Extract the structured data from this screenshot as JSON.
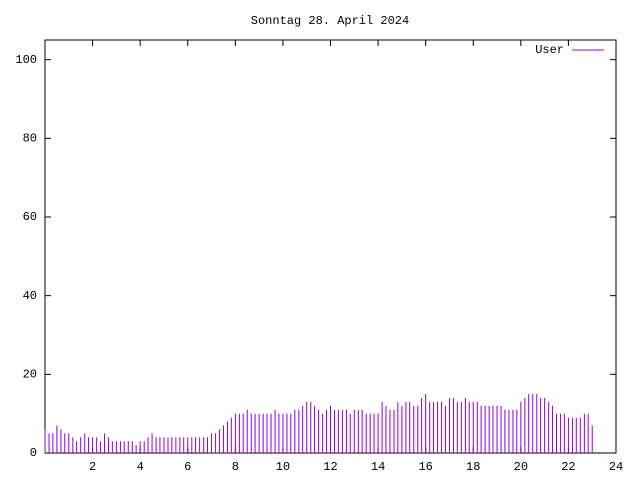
{
  "chart_data": {
    "type": "impulses",
    "title": "Sonntag 28. April 2024",
    "x": [
      0,
      0.17,
      0.33,
      0.5,
      0.67,
      0.83,
      1,
      1.17,
      1.33,
      1.5,
      1.67,
      1.83,
      2,
      2.17,
      2.33,
      2.5,
      2.67,
      2.83,
      3,
      3.17,
      3.33,
      3.5,
      3.67,
      3.83,
      4,
      4.17,
      4.33,
      4.5,
      4.67,
      4.83,
      5,
      5.17,
      5.33,
      5.5,
      5.67,
      5.83,
      6,
      6.17,
      6.33,
      6.5,
      6.67,
      6.83,
      7,
      7.17,
      7.33,
      7.5,
      7.67,
      7.83,
      8,
      8.17,
      8.33,
      8.5,
      8.67,
      8.83,
      9,
      9.17,
      9.33,
      9.5,
      9.67,
      9.83,
      10,
      10.17,
      10.33,
      10.5,
      10.67,
      10.83,
      11,
      11.17,
      11.33,
      11.5,
      11.67,
      11.83,
      12,
      12.17,
      12.33,
      12.5,
      12.67,
      12.83,
      13,
      13.17,
      13.33,
      13.5,
      13.67,
      13.83,
      14,
      14.17,
      14.33,
      14.5,
      14.67,
      14.83,
      15,
      15.17,
      15.33,
      15.5,
      15.67,
      15.83,
      16,
      16.17,
      16.33,
      16.5,
      16.67,
      16.83,
      17,
      17.17,
      17.33,
      17.5,
      17.67,
      17.83,
      18,
      18.17,
      18.33,
      18.5,
      18.67,
      18.83,
      19,
      19.17,
      19.33,
      19.5,
      19.67,
      19.83,
      20,
      20.17,
      20.33,
      20.5,
      20.67,
      20.83,
      21,
      21.17,
      21.33,
      21.5,
      21.67,
      21.83,
      22,
      22.17,
      22.33,
      22.5,
      22.67,
      22.83,
      23
    ],
    "series": [
      {
        "name": "User",
        "color": "#9400d3",
        "values": [
          6,
          5,
          5,
          7,
          6,
          5,
          5,
          4,
          3,
          4,
          5,
          4,
          4,
          4,
          3,
          5,
          4,
          3,
          3,
          3,
          3,
          3,
          3,
          2,
          3,
          3,
          4,
          5,
          4,
          4,
          4,
          4,
          4,
          4,
          4,
          4,
          4,
          4,
          4,
          4,
          4,
          4,
          5,
          5,
          6,
          7,
          8,
          9,
          10,
          10,
          10,
          11,
          10,
          10,
          10,
          10,
          10,
          10,
          11,
          10,
          10,
          10,
          10,
          11,
          11,
          12,
          13,
          13,
          12,
          11,
          10,
          11,
          12,
          11,
          11,
          11,
          11,
          10,
          11,
          11,
          11,
          10,
          10,
          10,
          10,
          13,
          12,
          11,
          11,
          13,
          12,
          13,
          13,
          12,
          12,
          14,
          15,
          13,
          13,
          13,
          13,
          12,
          14,
          14,
          13,
          13,
          14,
          13,
          13,
          13,
          12,
          12,
          12,
          12,
          12,
          12,
          11,
          11,
          11,
          11,
          13,
          14,
          15,
          15,
          15,
          14,
          14,
          13,
          12,
          10,
          10,
          10,
          9,
          9,
          9,
          9,
          10,
          10,
          7
        ]
      }
    ],
    "xlim": [
      0,
      24
    ],
    "ylim": [
      0,
      105
    ],
    "xticks": [
      2,
      4,
      6,
      8,
      10,
      12,
      14,
      16,
      18,
      20,
      22,
      24
    ],
    "yticks": [
      0,
      20,
      40,
      60,
      80,
      100
    ],
    "legend": "top-right"
  }
}
